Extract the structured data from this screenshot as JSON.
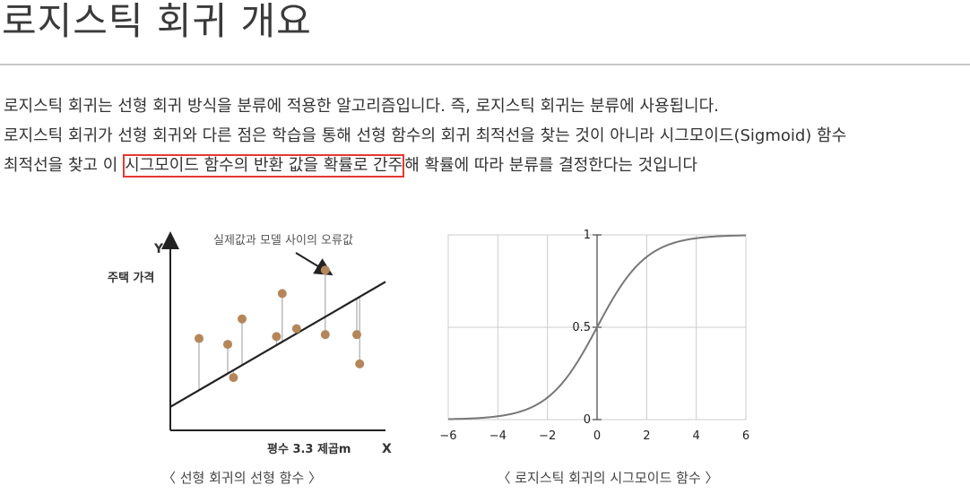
{
  "page": {
    "title": "로지스틱 회귀 개요"
  },
  "content": {
    "line1": "로지스틱 회귀는 선형 회귀 방식을 분류에 적용한 알고리즘입니다. 즉, 로지스틱 회귀는 분류에 사용됩니다.",
    "line2": "로지스틱 회귀가 선형 회귀와 다른 점은 학습을 통해 선형 함수의 회귀 최적선을 찾는 것이 아니라 시그모이드(Sigmoid) 함수",
    "line3_before": "최적선을 찾고 이 ",
    "line3_highlight": "시그모이드 함수의 반환 값을 확률로 간주",
    "line3_after": "해 확률에 따라 분류를 결정한다는 것입니다",
    "highlight_color": "#e53935"
  },
  "figures": {
    "linear": {
      "caption": "〈 선형 회귀의 선형 함수 〉",
      "y_axis_letter": "Y",
      "x_axis_letter": "X",
      "y_label": "주택 가격",
      "x_label": "평수 3.3 제곱m",
      "annotation": "실제값과 모델 사이의 오류값",
      "point_color": "#b5865a"
    },
    "sigmoid": {
      "caption": "〈 로지스틱 회귀의 시그모이드 함수 〉",
      "line_color": "#777777"
    }
  },
  "chart_data": [
    {
      "type": "scatter",
      "title": "",
      "xlabel": "평수 3.3 제곱m",
      "ylabel": "주택 가격",
      "x_tick_labels": [],
      "y_tick_labels": [],
      "legend": "none",
      "annotations": [
        "실제값과 모델 사이의 오류값"
      ],
      "series": [
        {
          "name": "",
          "points": [
            {
              "x": 1.0,
              "y": 4.7
            },
            {
              "x": 2.0,
              "y": 4.4
            },
            {
              "x": 2.2,
              "y": 2.7
            },
            {
              "x": 2.5,
              "y": 5.7
            },
            {
              "x": 3.7,
              "y": 4.8
            },
            {
              "x": 3.9,
              "y": 7.0
            },
            {
              "x": 4.4,
              "y": 5.2
            },
            {
              "x": 5.4,
              "y": 8.2
            },
            {
              "x": 5.4,
              "y": 4.9
            },
            {
              "x": 6.5,
              "y": 4.9
            },
            {
              "x": 6.6,
              "y": 3.4
            }
          ]
        }
      ],
      "fit_line": {
        "x": [
          0,
          7.5
        ],
        "y": [
          1.2,
          7.6
        ]
      },
      "grid": false
    },
    {
      "type": "line",
      "title": "",
      "xlabel": "",
      "ylabel": "",
      "xlim": [
        -6,
        6
      ],
      "ylim": [
        0,
        1
      ],
      "x_ticks": [
        -6,
        -4,
        -2,
        0,
        2,
        4,
        6
      ],
      "x_tick_labels": [
        "−6",
        "−4",
        "−2",
        "0",
        "2",
        "4",
        "6"
      ],
      "y_ticks": [
        0,
        0.5,
        1
      ],
      "y_tick_labels": [
        "0",
        "0.5",
        "1"
      ],
      "grid": true,
      "legend": "none",
      "function": "1 / (1 + e^(-x))",
      "series": [
        {
          "name": "",
          "x": [
            -6,
            -5,
            -4,
            -3,
            -2,
            -1,
            0,
            1,
            2,
            3,
            4,
            5,
            6
          ],
          "y": [
            0.0025,
            0.0067,
            0.018,
            0.047,
            0.119,
            0.269,
            0.5,
            0.731,
            0.881,
            0.953,
            0.982,
            0.993,
            0.9975
          ]
        }
      ]
    }
  ]
}
